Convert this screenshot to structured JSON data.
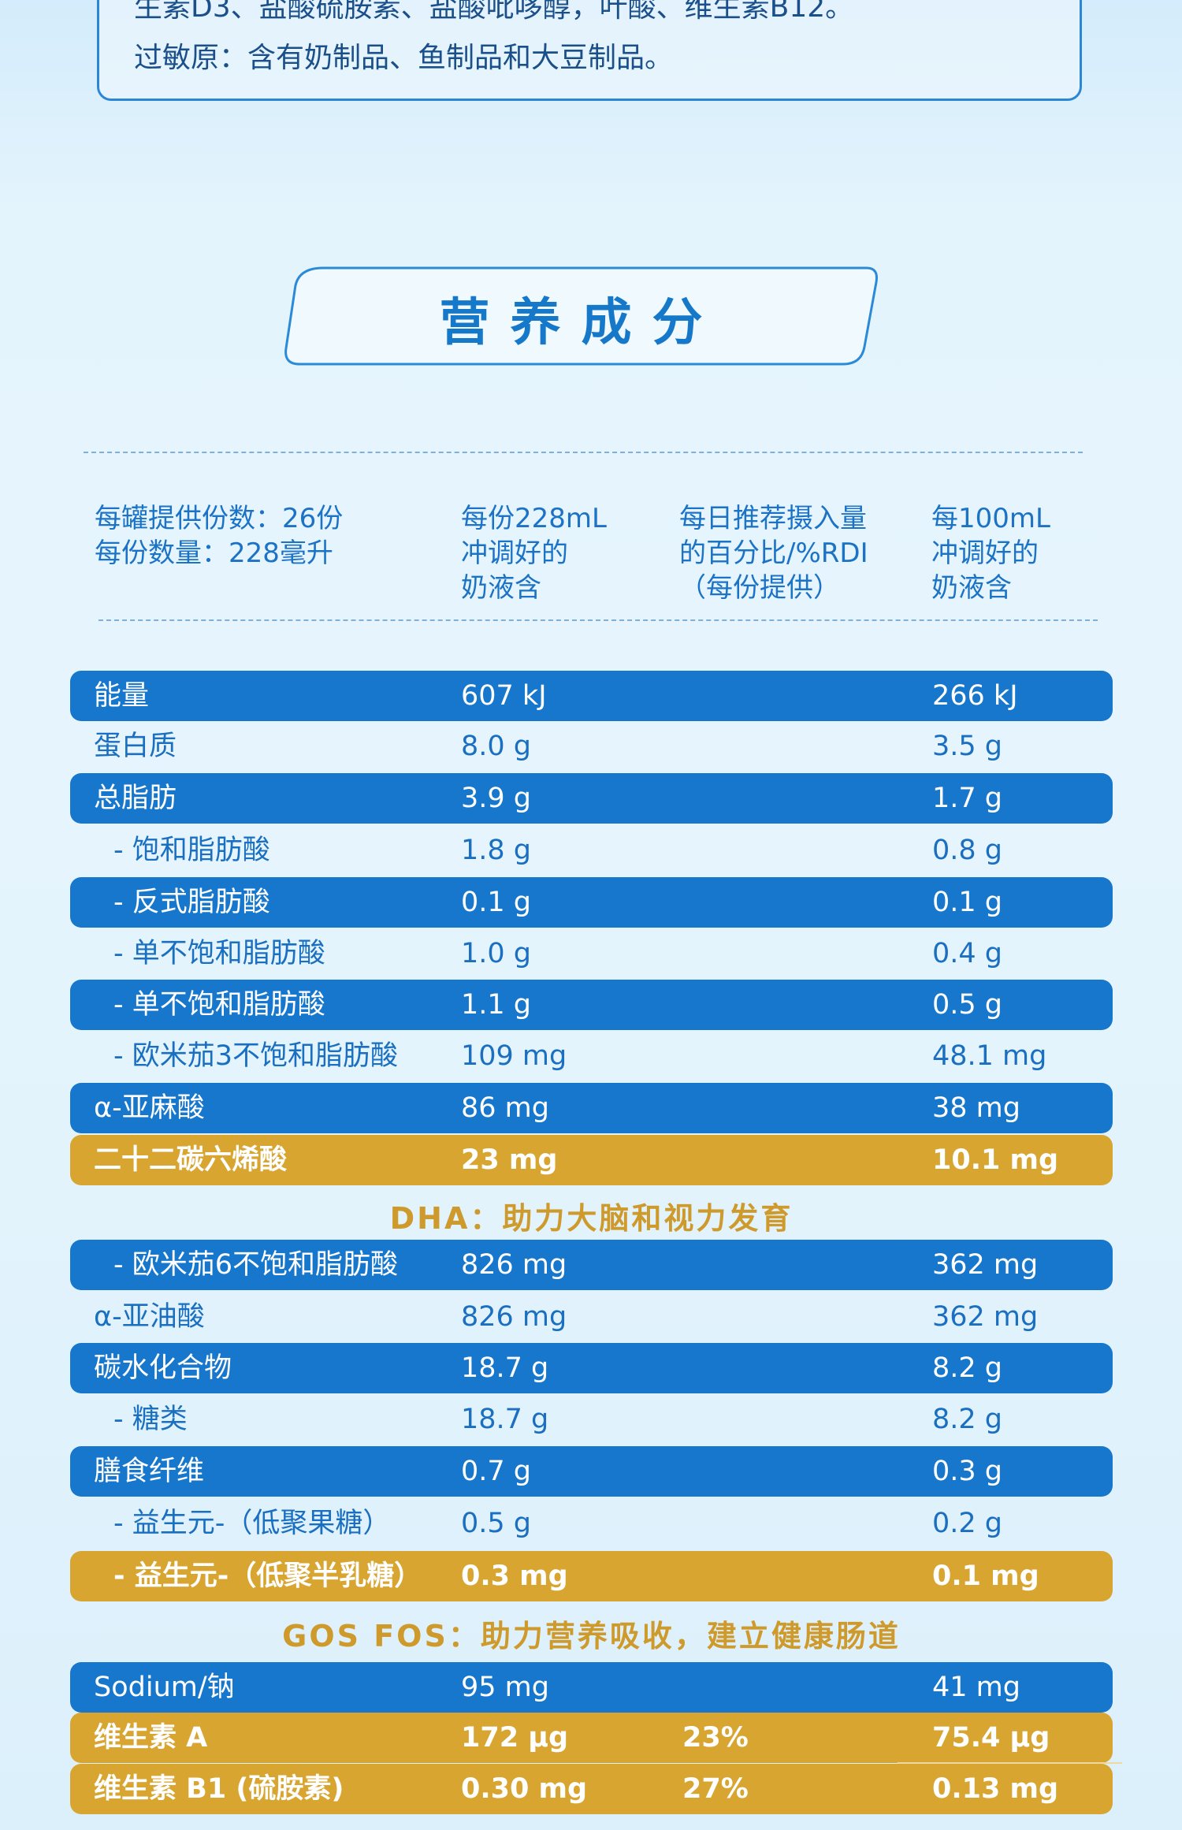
{
  "ingredients": {
    "line1": "生素D3、盐酸硫胺素、盐酸吡哆醇，叶酸、维生素B12。",
    "line2": "过敏原：含有奶制品、鱼制品和大豆制品。"
  },
  "section_title": "营养成分",
  "header": {
    "col1": "每罐提供份数：26份\n每份数量：228毫升",
    "col2": "每份228mL\n冲调好的\n奶液含",
    "col3": "每日推荐摄入量\n的百分比/%RDI\n（每份提供）",
    "col4": "每100mL\n冲调好的\n奶液含"
  },
  "colors": {
    "blue_band": "#1677cc",
    "gold_band": "#d8a531",
    "text_blue": "#1a6fc0",
    "note_gold": "#cf9a2c"
  },
  "rows": [
    {
      "name": "能量",
      "serving": "607 kJ",
      "rdi": "",
      "per100": "266 kJ",
      "style": "blue",
      "sub": false
    },
    {
      "name": "蛋白质",
      "serving": "8.0 g",
      "rdi": "",
      "per100": "3.5 g",
      "style": "plain",
      "sub": false
    },
    {
      "name": "总脂肪",
      "serving": "3.9 g",
      "rdi": "",
      "per100": "1.7 g",
      "style": "blue",
      "sub": false
    },
    {
      "name": "- 饱和脂肪酸",
      "serving": "1.8 g",
      "rdi": "",
      "per100": "0.8 g",
      "style": "plain",
      "sub": true
    },
    {
      "name": "- 反式脂肪酸",
      "serving": "0.1 g",
      "rdi": "",
      "per100": "0.1 g",
      "style": "blue",
      "sub": true
    },
    {
      "name": "- 单不饱和脂肪酸",
      "serving": "1.0 g",
      "rdi": "",
      "per100": "0.4 g",
      "style": "plain",
      "sub": true
    },
    {
      "name": "- 单不饱和脂肪酸",
      "serving": "1.1 g",
      "rdi": "",
      "per100": "0.5 g",
      "style": "blue",
      "sub": true
    },
    {
      "name": "- 欧米茄3不饱和脂肪酸",
      "serving": "109 mg",
      "rdi": "",
      "per100": "48.1 mg",
      "style": "plain",
      "sub": true
    },
    {
      "name": "α-亚麻酸",
      "serving": "86 mg",
      "rdi": "",
      "per100": "38 mg",
      "style": "blue",
      "sub": false
    },
    {
      "name": "二十二碳六烯酸",
      "serving": "23 mg",
      "rdi": "",
      "per100": "10.1 mg",
      "style": "gold",
      "sub": false
    },
    {
      "note": "DHA：助力大脑和视力发育"
    },
    {
      "name": "- 欧米茄6不饱和脂肪酸",
      "serving": "826 mg",
      "rdi": "",
      "per100": "362 mg",
      "style": "blue",
      "sub": true
    },
    {
      "name": "α-亚油酸",
      "serving": "826 mg",
      "rdi": "",
      "per100": "362 mg",
      "style": "plain",
      "sub": false
    },
    {
      "name": "碳水化合物",
      "serving": "18.7 g",
      "rdi": "",
      "per100": "8.2 g",
      "style": "blue",
      "sub": false
    },
    {
      "name": "- 糖类",
      "serving": "18.7 g",
      "rdi": "",
      "per100": "8.2 g",
      "style": "plain",
      "sub": true
    },
    {
      "name": "膳食纤维",
      "serving": "0.7 g",
      "rdi": "",
      "per100": "0.3 g",
      "style": "blue",
      "sub": false
    },
    {
      "name": "- 益生元-（低聚果糖）",
      "serving": "0.5 g",
      "rdi": "",
      "per100": "0.2 g",
      "style": "plain",
      "sub": true
    },
    {
      "name": "- 益生元-（低聚半乳糖）",
      "serving": "0.3 mg",
      "rdi": "",
      "per100": "0.1 mg",
      "style": "gold",
      "sub": true
    },
    {
      "note": "GOS FOS：助力营养吸收，建立健康肠道"
    },
    {
      "name": "Sodium/钠",
      "serving": "95 mg",
      "rdi": "",
      "per100": "41 mg",
      "style": "blue",
      "sub": false
    },
    {
      "name": "维生素 A",
      "serving": "172 μg",
      "rdi": "23%",
      "per100": "75.4 μg",
      "style": "gold",
      "sub": false,
      "sep": true
    },
    {
      "name": "维生素 B1 (硫胺素)",
      "serving": "0.30 mg",
      "rdi": "27%",
      "per100": "0.13 mg",
      "style": "gold",
      "sub": false
    }
  ]
}
